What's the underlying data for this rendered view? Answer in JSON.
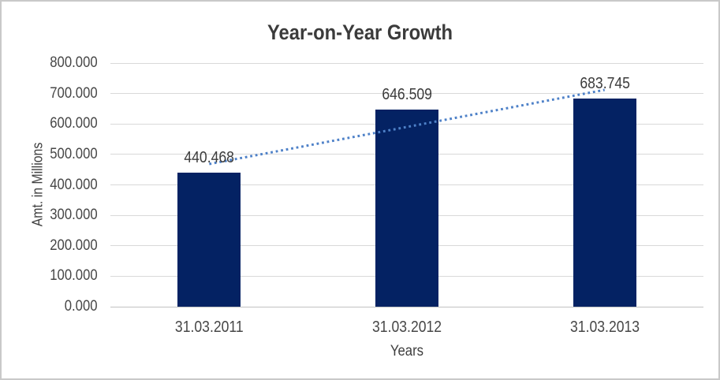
{
  "chart_data": {
    "type": "bar",
    "title": "Year-on-Year Growth",
    "xlabel": "Years",
    "ylabel": "Amt. in Millions",
    "categories": [
      "31.03.2011",
      "31.03.2012",
      "31.03.2013"
    ],
    "values": [
      440.468,
      646.509,
      683.745
    ],
    "data_labels": [
      "440.468",
      "646.509",
      "683.745"
    ],
    "y_ticks": [
      "0.000",
      "100.000",
      "200.000",
      "300.000",
      "400.000",
      "500.000",
      "600.000",
      "700.000",
      "800.000"
    ],
    "ylim": [
      0,
      800
    ],
    "grid": true,
    "legend": "none",
    "trendline": {
      "type": "linear",
      "style": "dotted",
      "fitted_values": [
        468.602,
        590.241,
        711.879
      ]
    },
    "colors": {
      "bar": "#042263",
      "trendline": "#4e81c8",
      "gridline": "#d9d9d9",
      "baseline": "#c2c2c2",
      "title_text": "#3b3b3b",
      "axis_text": "#474747",
      "label_text": "#3b3b3b",
      "background": "#ffffff",
      "border": "#c9c9c9"
    }
  }
}
